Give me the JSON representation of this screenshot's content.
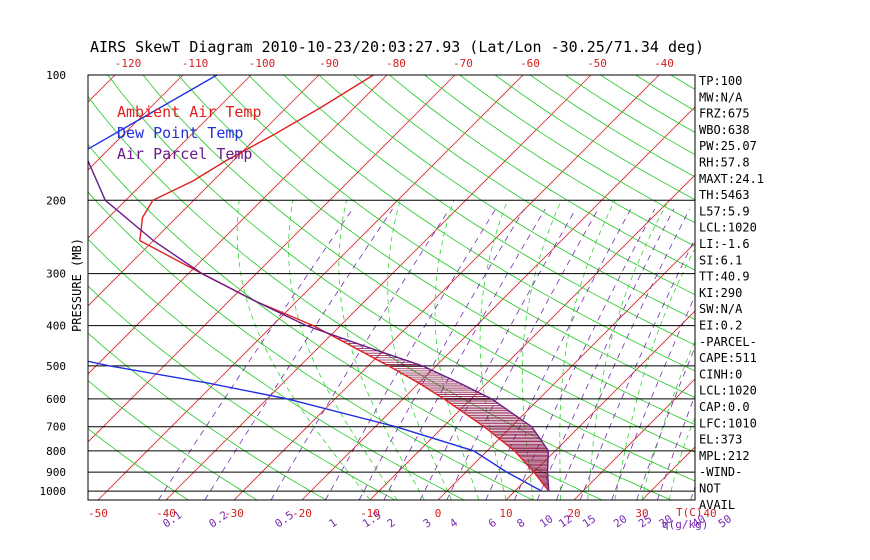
{
  "chart_data": {
    "type": "line",
    "title": "AIRS SkewT Diagram 2010-10-23/20:03:27.93 (Lat/Lon -30.25/71.34 deg)",
    "ylabel": "PRESSURE (MB)",
    "top_temperature_ticks": [
      "-120",
      "-110",
      "-100",
      "-90",
      "-80",
      "-70",
      "-60",
      "-50",
      "-40"
    ],
    "bottom_temperature_ticks": [
      "-50",
      "-40",
      "-30",
      "-20",
      "-10",
      "0",
      "10",
      "20",
      "30",
      "40"
    ],
    "bottom_temperature_unit": "T(C)",
    "mixing_ratio_labels": [
      "0.1",
      "0.2",
      "0.5",
      "1",
      "1.5",
      "2",
      "3",
      "4",
      "6",
      "8",
      "10",
      "12",
      "15",
      "20",
      "25",
      "30",
      "40",
      "50"
    ],
    "mixing_ratio_unit": "q(g/kg)",
    "pressure_ticks": [
      100,
      200,
      300,
      400,
      500,
      600,
      700,
      800,
      900,
      1000
    ],
    "pressure_range": [
      100,
      1050
    ],
    "grid": true,
    "legend": [
      {
        "label": "Ambient Air Temp",
        "color": "#e02020"
      },
      {
        "label": "Dew Point Temp",
        "color": "#2030e0"
      },
      {
        "label": "Air Parcel Temp",
        "color": "#6a1a8a"
      }
    ],
    "series": [
      {
        "name": "Ambient Air Temp",
        "color": "#e02020",
        "points": [
          [
            100,
            -72
          ],
          [
            120,
            -75
          ],
          [
            140,
            -78
          ],
          [
            160,
            -81
          ],
          [
            180,
            -83
          ],
          [
            200,
            -86
          ],
          [
            220,
            -85
          ],
          [
            250,
            -82
          ],
          [
            300,
            -68
          ],
          [
            350,
            -56
          ],
          [
            400,
            -44
          ],
          [
            450,
            -35
          ],
          [
            500,
            -27
          ],
          [
            550,
            -20
          ],
          [
            600,
            -14
          ],
          [
            700,
            -4
          ],
          [
            800,
            4
          ],
          [
            900,
            10
          ],
          [
            1000,
            15
          ]
        ]
      },
      {
        "name": "Dew Point Temp",
        "color": "#2030e0",
        "points": [
          [
            100,
            -95
          ],
          [
            150,
            -103
          ],
          [
            200,
            -110
          ],
          [
            250,
            -112
          ],
          [
            300,
            -120
          ],
          [
            400,
            -110
          ],
          [
            450,
            -84
          ],
          [
            500,
            -68
          ],
          [
            550,
            -51
          ],
          [
            600,
            -37
          ],
          [
            700,
            -17
          ],
          [
            800,
            -2
          ],
          [
            900,
            6
          ],
          [
            1000,
            14
          ]
        ]
      },
      {
        "name": "Air Parcel Temp",
        "color": "#6a1a8a",
        "points": [
          [
            100,
            -115
          ],
          [
            120,
            -110
          ],
          [
            150,
            -104
          ],
          [
            200,
            -93
          ],
          [
            250,
            -80
          ],
          [
            300,
            -68
          ],
          [
            350,
            -56
          ],
          [
            400,
            -45
          ],
          [
            450,
            -33
          ],
          [
            500,
            -22
          ],
          [
            550,
            -14
          ],
          [
            600,
            -7
          ],
          [
            700,
            3
          ],
          [
            800,
            9
          ],
          [
            900,
            12
          ],
          [
            1000,
            15
          ]
        ]
      }
    ],
    "hatched_area": "CAPE region between Air Parcel Temp and Ambient Air Temp",
    "indices": [
      "TP:100",
      "MW:N/A",
      "FRZ:675",
      "WBO:638",
      "PW:25.07",
      "RH:57.8",
      "MAXT:24.1",
      "TH:5463",
      "L57:5.9",
      "LCL:1020",
      "LI:-1.6",
      "SI:6.1",
      "TT:40.9",
      "KI:290",
      "SW:N/A",
      "EI:0.2",
      "-PARCEL-",
      "CAPE:511",
      "CINH:0",
      "LCL:1020",
      "CAP:0.0",
      "LFC:1010",
      "EL:373",
      "MPL:212",
      "-WIND-",
      "NOT",
      "AVAIL"
    ]
  }
}
